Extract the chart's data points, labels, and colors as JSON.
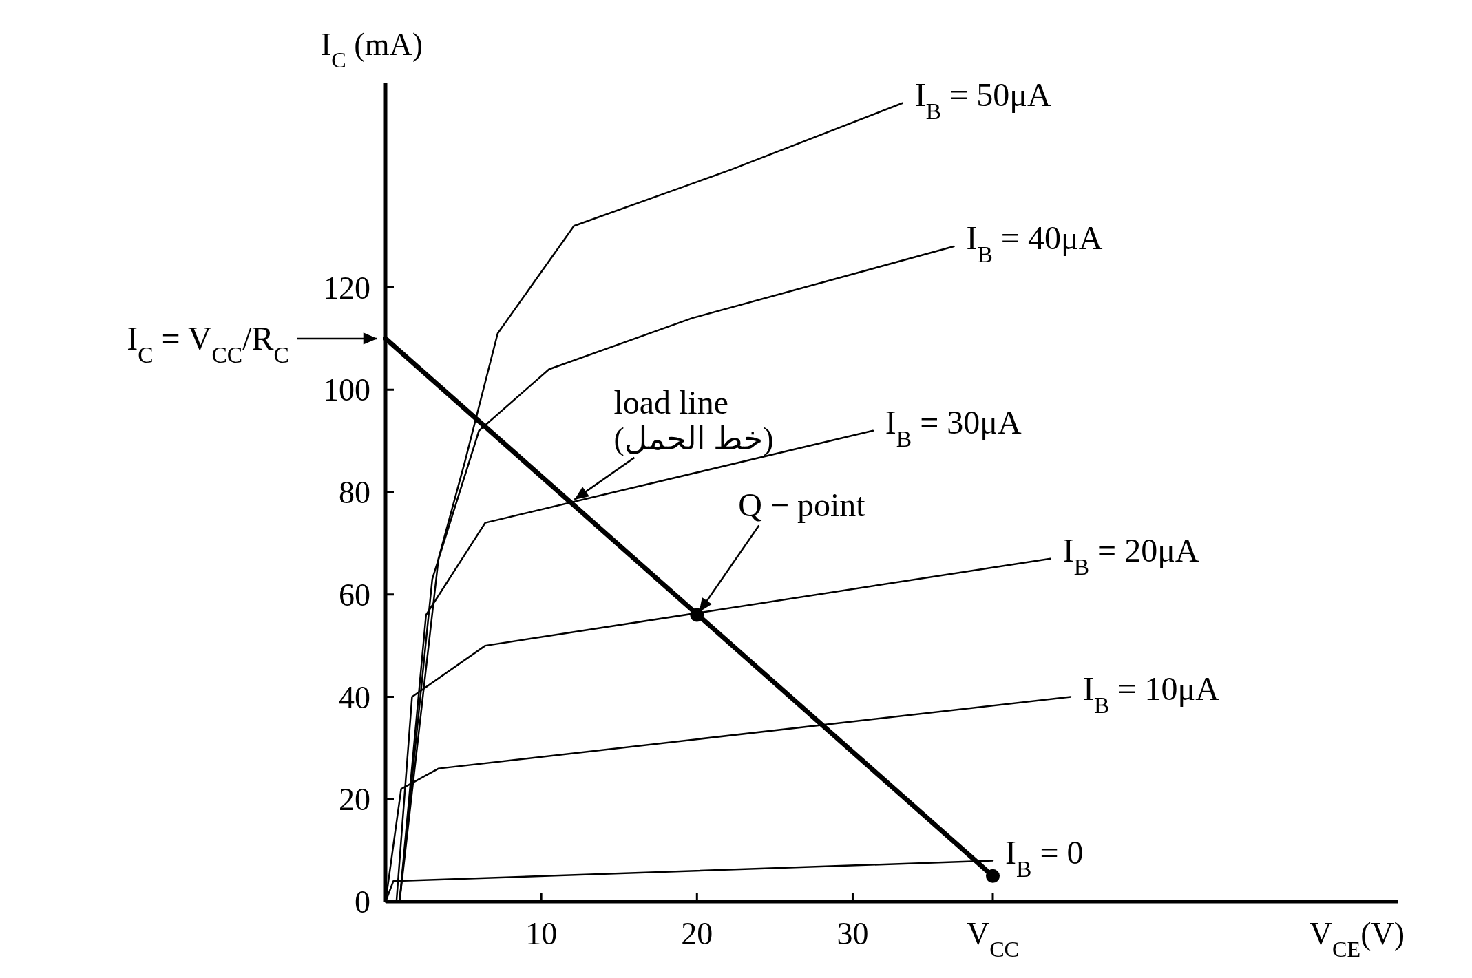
{
  "chart_data": {
    "type": "line",
    "xlabel": "V$_{CE}$(V)",
    "ylabel": "I$_{C}$ (mA)",
    "xlim": [
      0,
      65
    ],
    "ylim": [
      0,
      160
    ],
    "xticks": [
      10,
      20,
      30,
      {
        "value": 39,
        "label": "V$_{CC}$"
      }
    ],
    "yticks": [
      0,
      20,
      40,
      60,
      80,
      100,
      120
    ],
    "marker": "none",
    "line_style": "solid",
    "series": [
      {
        "name": "I$_{B}$ = 50μA",
        "color": "#000000",
        "x": [
          0,
          0.9,
          3.4,
          5.1,
          7.2,
          12.1,
          22.2,
          33.2
        ],
        "values": [
          0,
          0,
          67,
          86,
          111,
          132,
          143,
          156
        ]
      },
      {
        "name": "I$_{B}$ = 40μA",
        "color": "#000000",
        "x": [
          0,
          0.9,
          3.0,
          6.0,
          10.5,
          19.7,
          36.5
        ],
        "values": [
          0,
          0,
          63,
          92,
          104,
          114,
          128
        ]
      },
      {
        "name": "I$_{B}$ = 30μA",
        "color": "#000000",
        "x": [
          0,
          0.9,
          2.6,
          6.4,
          31.3
        ],
        "values": [
          0,
          0,
          56,
          74,
          92
        ]
      },
      {
        "name": "I$_{B}$ = 20μA",
        "color": "#000000",
        "x": [
          0,
          0.7,
          1.7,
          6.4,
          42.7
        ],
        "values": [
          0,
          0,
          40,
          50,
          67
        ]
      },
      {
        "name": "I$_{B}$ = 10μA",
        "color": "#000000",
        "x": [
          0,
          1.0,
          3.4,
          44
        ],
        "values": [
          0,
          22,
          26,
          40
        ]
      },
      {
        "name": "I$_{B}$ = 0",
        "color": "#000000",
        "x": [
          0,
          0.5,
          39
        ],
        "values": [
          0,
          4,
          8
        ]
      },
      {
        "type": "line",
        "color": "#000000",
        "x": [
          0,
          39
        ],
        "values": [
          110,
          5
        ]
      },
      {
        "type": "scatter",
        "marker": "circle",
        "color": "#000000",
        "x": [
          20,
          39
        ],
        "values": [
          56,
          5
        ]
      }
    ],
    "annotations": [
      {
        "text": "I$_{C}$ = V$_{CC}$/R$_{C}$",
        "x": 0,
        "y": 110
      },
      {
        "text": "load line",
        "x": 12,
        "y": 78
      },
      "(خط الحمل)",
      {
        "text": "Q − point",
        "x": 20,
        "y": 56
      }
    ]
  }
}
